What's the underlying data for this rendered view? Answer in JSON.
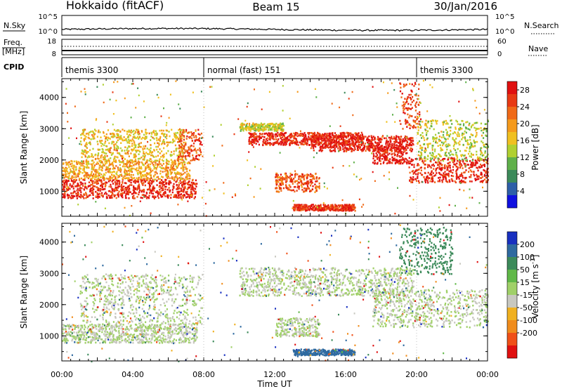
{
  "header": {
    "station": "Hokkaido (fitACF)",
    "beam": "Beam 15",
    "date": "30/Jan/2016"
  },
  "noise_panel": {
    "left_label": "N.Sky",
    "right_label": "N.Search",
    "left_ticks": [
      "10^5",
      "10^0"
    ],
    "right_ticks": [
      "10^5",
      "10^0"
    ]
  },
  "freq_panel": {
    "left_label_top": "Freq.",
    "left_label_unit": "[MHz]",
    "left_ticks": [
      "18",
      "8"
    ],
    "right_label": "Nave",
    "right_ticks": [
      "60",
      "0"
    ]
  },
  "cpid_panel": {
    "label": "CPID",
    "modes": [
      {
        "start_hour": 0,
        "text": "themis 3300"
      },
      {
        "start_hour": 8,
        "text": "normal (fast) 151"
      },
      {
        "start_hour": 20,
        "text": "themis 3300"
      }
    ]
  },
  "chart_data": [
    {
      "type": "heatmap",
      "name": "power",
      "ylabel": "Slant Range [km]",
      "xlabel": "",
      "xlim": [
        0,
        24
      ],
      "ylim": [
        200,
        4600
      ],
      "ytick_values": [
        1000,
        2000,
        3000,
        4000
      ],
      "ytick_labels": [
        "1000",
        "2000",
        "3000",
        "4000"
      ],
      "colorbar": {
        "label": "Power [dB]",
        "tick_labels": [
          "4",
          "8",
          "12",
          "16",
          "20",
          "24",
          "28"
        ],
        "range": [
          0,
          30
        ],
        "colors": [
          "#1010e0",
          "#2e5fa8",
          "#3c8a5a",
          "#5fb04a",
          "#b0d030",
          "#f0c020",
          "#f59a1c",
          "#f06a18",
          "#e83a14",
          "#e01010"
        ]
      },
      "bands": [
        {
          "t": [
            0.0,
            7.6
          ],
          "r": [
            800,
            1400
          ],
          "level": 27
        },
        {
          "t": [
            0.0,
            7.2
          ],
          "r": [
            1400,
            2000
          ],
          "level": 19
        },
        {
          "t": [
            1.0,
            7.0
          ],
          "r": [
            2000,
            3000
          ],
          "level": 17
        },
        {
          "t": [
            6.5,
            7.9
          ],
          "r": [
            2000,
            3000
          ],
          "level": 25
        },
        {
          "t": [
            10.0,
            12.5
          ],
          "r": [
            2950,
            3200
          ],
          "level": 15
        },
        {
          "t": [
            10.5,
            17.0
          ],
          "r": [
            2500,
            2900
          ],
          "level": 27
        },
        {
          "t": [
            14.0,
            19.8
          ],
          "r": [
            2300,
            2800
          ],
          "level": 28
        },
        {
          "t": [
            17.5,
            19.5
          ],
          "r": [
            1900,
            2500
          ],
          "level": 28
        },
        {
          "t": [
            19.5,
            24.0
          ],
          "r": [
            1300,
            2100
          ],
          "level": 27
        },
        {
          "t": [
            12.0,
            14.5
          ],
          "r": [
            1000,
            1600
          ],
          "level": 24
        },
        {
          "t": [
            13.0,
            16.5
          ],
          "r": [
            400,
            600
          ],
          "level": 27
        },
        {
          "t": [
            19.0,
            20.2
          ],
          "r": [
            3000,
            4500
          ],
          "level": 25
        },
        {
          "t": [
            20.0,
            24.0
          ],
          "r": [
            2000,
            3300
          ],
          "level": 14
        }
      ]
    },
    {
      "type": "heatmap",
      "name": "velocity",
      "ylabel": "Slant Range [km]",
      "xlabel": "Time UT",
      "xlim": [
        0,
        24
      ],
      "ylim": [
        200,
        4600
      ],
      "xtick_values": [
        0,
        4,
        8,
        12,
        16,
        20,
        24
      ],
      "xtick_labels": [
        "00:00",
        "04:00",
        "08:00",
        "12:00",
        "16:00",
        "20:00",
        "00:00"
      ],
      "ytick_values": [
        1000,
        2000,
        3000,
        4000
      ],
      "ytick_labels": [
        "1000",
        "2000",
        "3000",
        "4000"
      ],
      "colorbar": {
        "label": "Velocity [m s^-1]",
        "tick_labels": [
          "200",
          "100",
          "50",
          "15",
          "-15",
          "-50",
          "-100",
          "-200"
        ],
        "colors": [
          "#1830c0",
          "#2f6aa0",
          "#3c8a5a",
          "#60b848",
          "#a0d068",
          "#c8c8c0",
          "#f0b020",
          "#f08c1c",
          "#f05018",
          "#e01010"
        ]
      },
      "bands": [
        {
          "t": [
            0.0,
            7.6
          ],
          "r": [
            800,
            1400
          ],
          "mean_velocity": 0
        },
        {
          "t": [
            1.0,
            7.9
          ],
          "r": [
            1400,
            3000
          ],
          "mean_velocity": 0
        },
        {
          "t": [
            10.0,
            19.8
          ],
          "r": [
            2300,
            3200
          ],
          "mean_velocity": 0
        },
        {
          "t": [
            12.0,
            14.5
          ],
          "r": [
            1000,
            1600
          ],
          "mean_velocity": 0
        },
        {
          "t": [
            13.0,
            16.5
          ],
          "r": [
            400,
            600
          ],
          "mean_velocity": 100
        },
        {
          "t": [
            17.5,
            24.0
          ],
          "r": [
            1300,
            2500
          ],
          "mean_velocity": 0
        },
        {
          "t": [
            19.0,
            22.0
          ],
          "r": [
            3000,
            4500
          ],
          "mean_velocity": 50
        }
      ]
    }
  ]
}
